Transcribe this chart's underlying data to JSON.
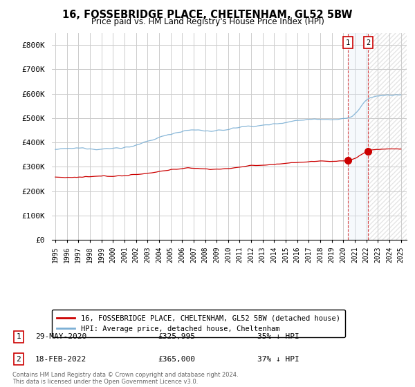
{
  "title": "16, FOSSEBRIDGE PLACE, CHELTENHAM, GL52 5BW",
  "subtitle": "Price paid vs. HM Land Registry's House Price Index (HPI)",
  "ylim": [
    0,
    850000
  ],
  "yticks": [
    0,
    100000,
    200000,
    300000,
    400000,
    500000,
    600000,
    700000,
    800000
  ],
  "ytick_labels": [
    "£0",
    "£100K",
    "£200K",
    "£300K",
    "£400K",
    "£500K",
    "£600K",
    "£700K",
    "£800K"
  ],
  "hpi_color": "#7bafd4",
  "price_color": "#cc0000",
  "annotation1_label": "1",
  "annotation1_date": "29-MAY-2020",
  "annotation1_price": "£325,995",
  "annotation1_hpi": "35% ↓ HPI",
  "annotation1_year": 2020.42,
  "annotation1_value": 325995,
  "annotation2_label": "2",
  "annotation2_date": "18-FEB-2022",
  "annotation2_price": "£365,000",
  "annotation2_hpi": "37% ↓ HPI",
  "annotation2_year": 2022.12,
  "annotation2_value": 365000,
  "legend_label1": "16, FOSSEBRIDGE PLACE, CHELTENHAM, GL52 5BW (detached house)",
  "legend_label2": "HPI: Average price, detached house, Cheltenham",
  "footer": "Contains HM Land Registry data © Crown copyright and database right 2024.\nThis data is licensed under the Open Government Licence v3.0.",
  "background_color": "#ffffff",
  "grid_color": "#cccccc",
  "box_color": "#cc0000",
  "shaded_color": "#dce8f5",
  "hatch_color": "#e0e0e0"
}
